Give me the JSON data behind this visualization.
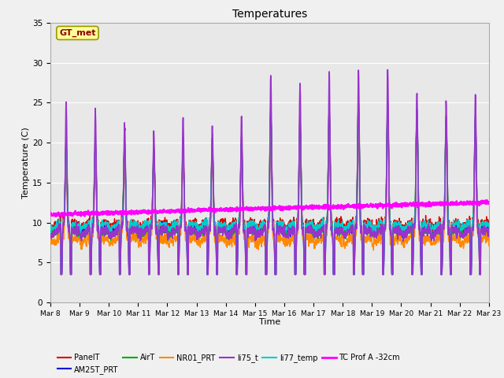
{
  "title": "Temperatures",
  "xlabel": "Time",
  "ylabel": "Temperature (C)",
  "ylim": [
    0,
    35
  ],
  "background_color": "#f0f0f0",
  "plot_bg_color": "#e8e8e8",
  "grid_color": "white",
  "tick_labels": [
    "Mar 8",
    "Mar 9",
    "Mar 10",
    "Mar 11",
    "Mar 12",
    "Mar 13",
    "Mar 14",
    "Mar 15",
    "Mar 16",
    "Mar 17",
    "Mar 18",
    "Mar 19",
    "Mar 20",
    "Mar 21",
    "Mar 22",
    "Mar 23"
  ],
  "series": {
    "PanelT": {
      "color": "#dd0000",
      "lw": 1.0,
      "zorder": 4
    },
    "AM25T_PRT": {
      "color": "#0000dd",
      "lw": 1.0,
      "zorder": 4
    },
    "AirT": {
      "color": "#00aa00",
      "lw": 1.0,
      "zorder": 4
    },
    "NR01_PRT": {
      "color": "#ff8800",
      "lw": 1.0,
      "zorder": 4
    },
    "li75_t": {
      "color": "#9933cc",
      "lw": 1.2,
      "zorder": 5
    },
    "li77_temp": {
      "color": "#00cccc",
      "lw": 1.0,
      "zorder": 4
    },
    "TC Prof A -32cm": {
      "color": "#ff00ff",
      "lw": 1.8,
      "zorder": 6
    }
  },
  "annotation": {
    "text": "GT_met",
    "fontsize": 8,
    "color": "#8B0000",
    "bg": "#ffff99",
    "border": "#999900"
  },
  "figsize": [
    6.4,
    4.8
  ],
  "dpi": 100
}
